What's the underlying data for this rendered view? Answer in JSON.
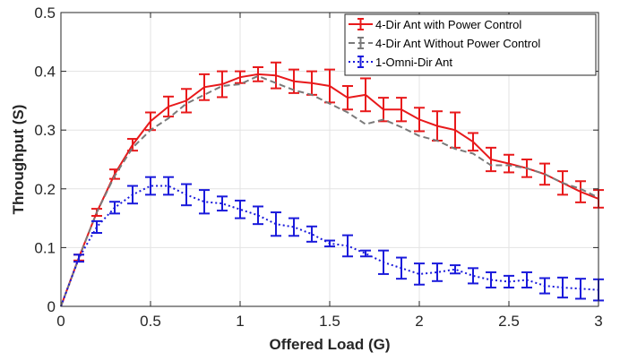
{
  "chart_data": {
    "type": "line",
    "xlabel": "Offered Load (G)",
    "ylabel": "Throughput (S)",
    "xlim": [
      0,
      3
    ],
    "ylim": [
      0,
      0.5
    ],
    "xticks": [
      0,
      0.5,
      1,
      1.5,
      2,
      2.5,
      3
    ],
    "xtick_labels": [
      "0",
      "0.5",
      "1",
      "1.5",
      "2",
      "2.5",
      "3"
    ],
    "yticks": [
      0,
      0.1,
      0.2,
      0.3,
      0.4,
      0.5
    ],
    "ytick_labels": [
      "0",
      "0.1",
      "0.2",
      "0.3",
      "0.4",
      "0.5"
    ],
    "grid": true,
    "legend_position": "top-right",
    "x": [
      0,
      0.1,
      0.2,
      0.3,
      0.4,
      0.5,
      0.6,
      0.7,
      0.8,
      0.9,
      1.0,
      1.1,
      1.2,
      1.3,
      1.4,
      1.5,
      1.6,
      1.7,
      1.8,
      1.9,
      2.0,
      2.1,
      2.2,
      2.3,
      2.4,
      2.5,
      2.6,
      2.7,
      2.8,
      2.9,
      3.0
    ],
    "series": [
      {
        "name": "4-Dir Ant with Power Control",
        "color": "#e8191b",
        "dash": "solid",
        "values": [
          0,
          0.083,
          0.16,
          0.225,
          0.275,
          0.315,
          0.34,
          0.35,
          0.373,
          0.378,
          0.39,
          0.395,
          0.393,
          0.383,
          0.38,
          0.375,
          0.355,
          0.36,
          0.335,
          0.335,
          0.318,
          0.307,
          0.3,
          0.28,
          0.25,
          0.243,
          0.235,
          0.225,
          0.21,
          0.195,
          0.183
        ],
        "errors": [
          0,
          0.005,
          0.006,
          0.008,
          0.01,
          0.015,
          0.017,
          0.02,
          0.022,
          0.022,
          0.01,
          0.012,
          0.022,
          0.02,
          0.02,
          0.028,
          0.02,
          0.028,
          0.02,
          0.02,
          0.02,
          0.025,
          0.03,
          0.015,
          0.02,
          0.015,
          0.015,
          0.018,
          0.02,
          0.018,
          0.015
        ]
      },
      {
        "name": "4-Dir Ant Without Power Control",
        "color": "#7a7a7a",
        "dash": "dashed",
        "values": [
          0,
          0.082,
          0.16,
          0.222,
          0.27,
          0.3,
          0.32,
          0.345,
          0.36,
          0.375,
          0.378,
          0.392,
          0.38,
          0.368,
          0.36,
          0.345,
          0.33,
          0.31,
          0.318,
          0.305,
          0.29,
          0.282,
          0.268,
          0.26,
          0.24,
          0.24,
          0.235,
          0.225,
          0.21,
          0.2,
          0.185
        ]
      },
      {
        "name": "1-Omni-Dir Ant",
        "color": "#1a1adb",
        "dash": "dotted",
        "values": [
          0,
          0.082,
          0.135,
          0.168,
          0.19,
          0.205,
          0.205,
          0.19,
          0.178,
          0.175,
          0.165,
          0.155,
          0.14,
          0.135,
          0.123,
          0.107,
          0.103,
          0.09,
          0.075,
          0.065,
          0.055,
          0.058,
          0.063,
          0.052,
          0.045,
          0.042,
          0.045,
          0.035,
          0.032,
          0.03,
          0.028
        ],
        "errors": [
          0,
          0.006,
          0.01,
          0.01,
          0.015,
          0.015,
          0.015,
          0.018,
          0.02,
          0.012,
          0.015,
          0.015,
          0.02,
          0.015,
          0.013,
          0.005,
          0.018,
          0.005,
          0.02,
          0.018,
          0.018,
          0.015,
          0.007,
          0.013,
          0.013,
          0.01,
          0.013,
          0.013,
          0.017,
          0.017,
          0.018
        ]
      }
    ]
  }
}
